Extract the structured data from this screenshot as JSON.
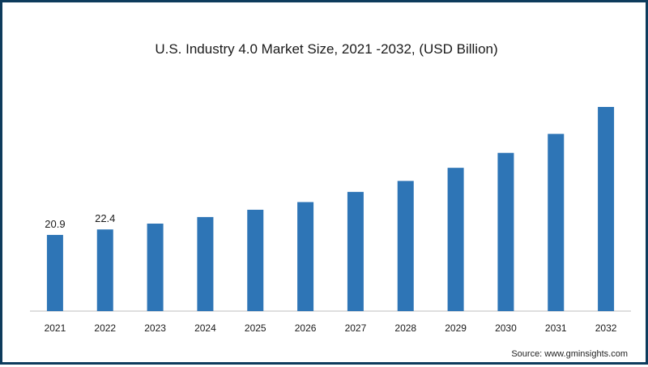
{
  "chart_data": {
    "type": "bar",
    "title": "U.S. Industry 4.0 Market Size, 2021 -2032, (USD Billion)",
    "categories": [
      "2021",
      "2022",
      "2023",
      "2024",
      "2025",
      "2026",
      "2027",
      "2028",
      "2029",
      "2030",
      "2031",
      "2032"
    ],
    "values": [
      20.9,
      22.4,
      24.0,
      25.8,
      27.8,
      29.9,
      32.7,
      35.7,
      39.3,
      43.4,
      48.6,
      56.0
    ],
    "data_labels": [
      "20.9",
      "22.4",
      null,
      null,
      null,
      null,
      null,
      null,
      null,
      null,
      null,
      null
    ],
    "xlabel": "",
    "ylabel": "",
    "ylim": [
      0,
      60
    ],
    "grid": false,
    "bar_color": "#2e75b6"
  },
  "source": "Source: www.gminsights.com"
}
